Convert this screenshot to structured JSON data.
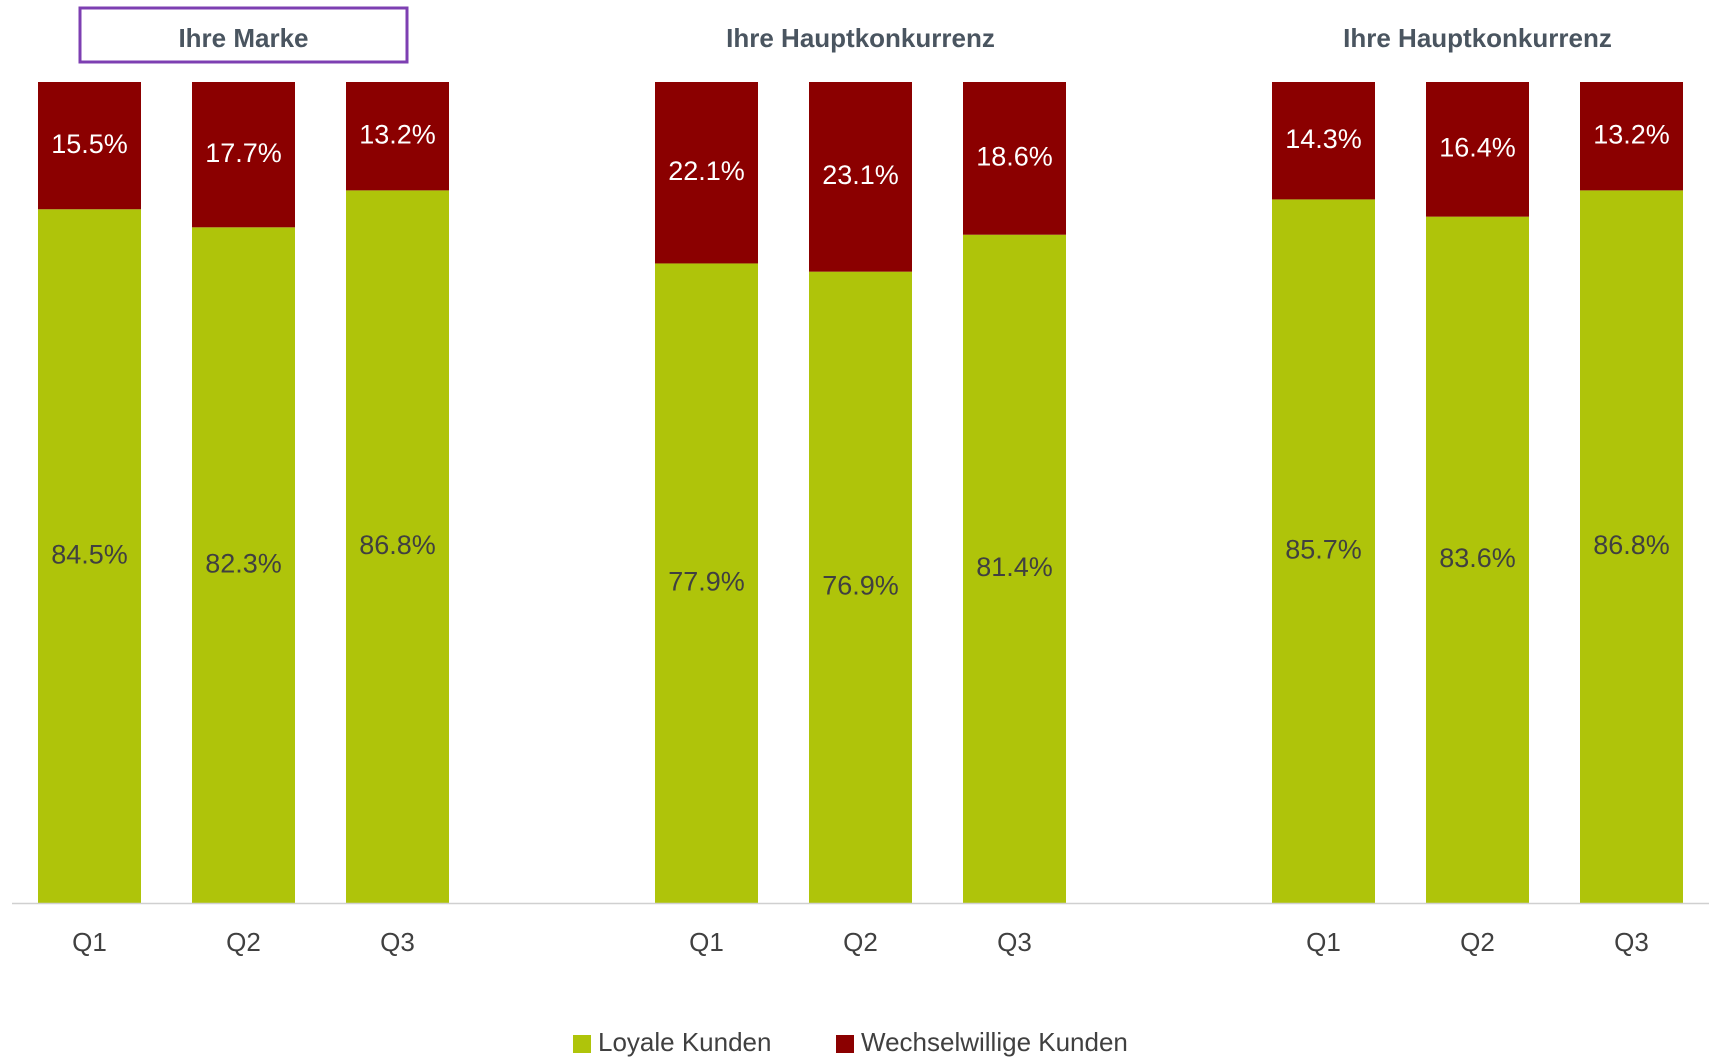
{
  "chart_data": {
    "type": "bar",
    "stacked": true,
    "percent_stacked": true,
    "ylim": [
      0,
      100
    ],
    "grid": false,
    "legend_position": "bottom",
    "highlighted_group": 0,
    "colors": {
      "loyal": "#afc40a",
      "switching": "#8b0000",
      "highlight_border": "#7d3fb2",
      "title_text": "#4a5560",
      "axis_text": "#404040",
      "label_on_loyal": "#404040",
      "label_on_switching": "#ffffff",
      "axis_line": "#d0d0d0"
    },
    "legend": [
      {
        "name": "Loyale Kunden",
        "color": "#afc40a"
      },
      {
        "name": "Wechselwillige Kunden",
        "color": "#8b0000"
      }
    ],
    "groups": [
      {
        "title": "Ihre Marke",
        "categories": [
          "Q1",
          "Q2",
          "Q3"
        ],
        "series": [
          {
            "name": "Loyale Kunden",
            "values": [
              84.5,
              82.3,
              86.8
            ],
            "labels": [
              "84.5%",
              "82.3%",
              "86.8%"
            ]
          },
          {
            "name": "Wechselwillige Kunden",
            "values": [
              15.5,
              17.7,
              13.2
            ],
            "labels": [
              "15.5%",
              "17.7%",
              "13.2%"
            ]
          }
        ]
      },
      {
        "title": "Ihre Hauptkonkurrenz",
        "categories": [
          "Q1",
          "Q2",
          "Q3"
        ],
        "series": [
          {
            "name": "Loyale Kunden",
            "values": [
              77.9,
              76.9,
              81.4
            ],
            "labels": [
              "77.9%",
              "76.9%",
              "81.4%"
            ]
          },
          {
            "name": "Wechselwillige Kunden",
            "values": [
              22.1,
              23.1,
              18.6
            ],
            "labels": [
              "22.1%",
              "23.1%",
              "18.6%"
            ]
          }
        ]
      },
      {
        "title": "Ihre Hauptkonkurrenz",
        "categories": [
          "Q1",
          "Q2",
          "Q3"
        ],
        "series": [
          {
            "name": "Loyale Kunden",
            "values": [
              85.7,
              83.6,
              86.8
            ],
            "labels": [
              "85.7%",
              "83.6%",
              "86.8%"
            ]
          },
          {
            "name": "Wechselwillige Kunden",
            "values": [
              14.3,
              16.4,
              13.2
            ],
            "labels": [
              "14.3%",
              "16.4%",
              "13.2%"
            ]
          }
        ]
      }
    ]
  }
}
